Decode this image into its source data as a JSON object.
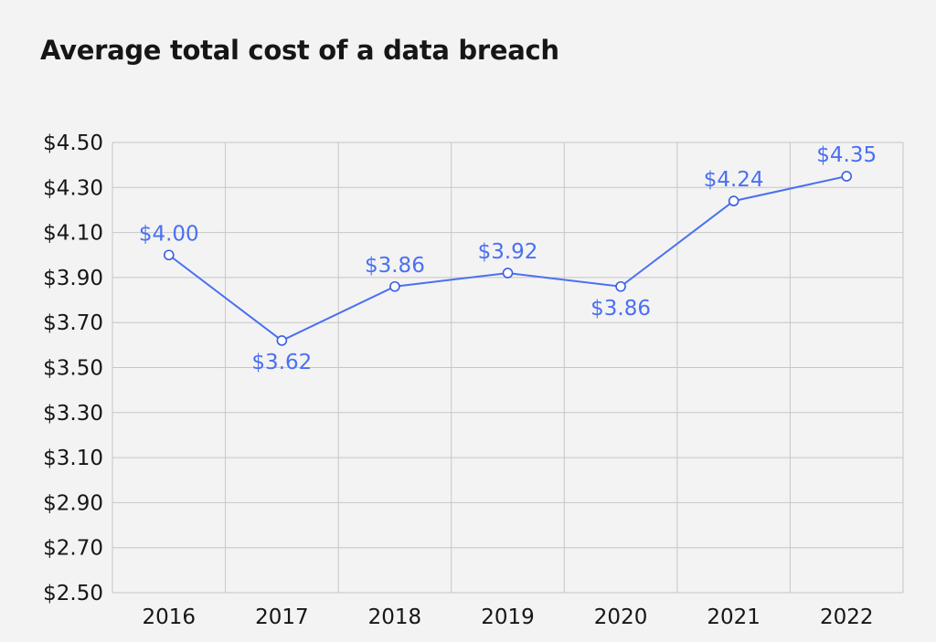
{
  "chart_data": {
    "type": "line",
    "title": "Average total cost of a data breach",
    "xlabel": "",
    "ylabel": "",
    "categories": [
      "2016",
      "2017",
      "2018",
      "2019",
      "2020",
      "2021",
      "2022"
    ],
    "series": [
      {
        "values": [
          4.0,
          3.62,
          3.86,
          3.92,
          3.86,
          4.24,
          4.35
        ],
        "data_labels": [
          "$4.00",
          "$3.62",
          "$3.86",
          "$3.92",
          "$3.86",
          "$4.24",
          "$4.35"
        ],
        "label_side": [
          "above",
          "below",
          "above",
          "above",
          "below",
          "above",
          "above"
        ]
      }
    ],
    "ylim": [
      2.5,
      4.5
    ],
    "yticks": [
      2.5,
      2.7,
      2.9,
      3.1,
      3.3,
      3.5,
      3.7,
      3.9,
      4.1,
      4.3,
      4.5
    ],
    "ytick_labels": [
      "$2.50",
      "$2.70",
      "$2.90",
      "$3.10",
      "$3.30",
      "$3.50",
      "$3.70",
      "$3.90",
      "$4.10",
      "$4.30",
      "$4.50"
    ],
    "grid": true,
    "legend": "none",
    "colors": {
      "series": "#4a70f2",
      "grid": "#c6c6c6",
      "text": "#161616",
      "background": "#f3f3f3"
    }
  }
}
